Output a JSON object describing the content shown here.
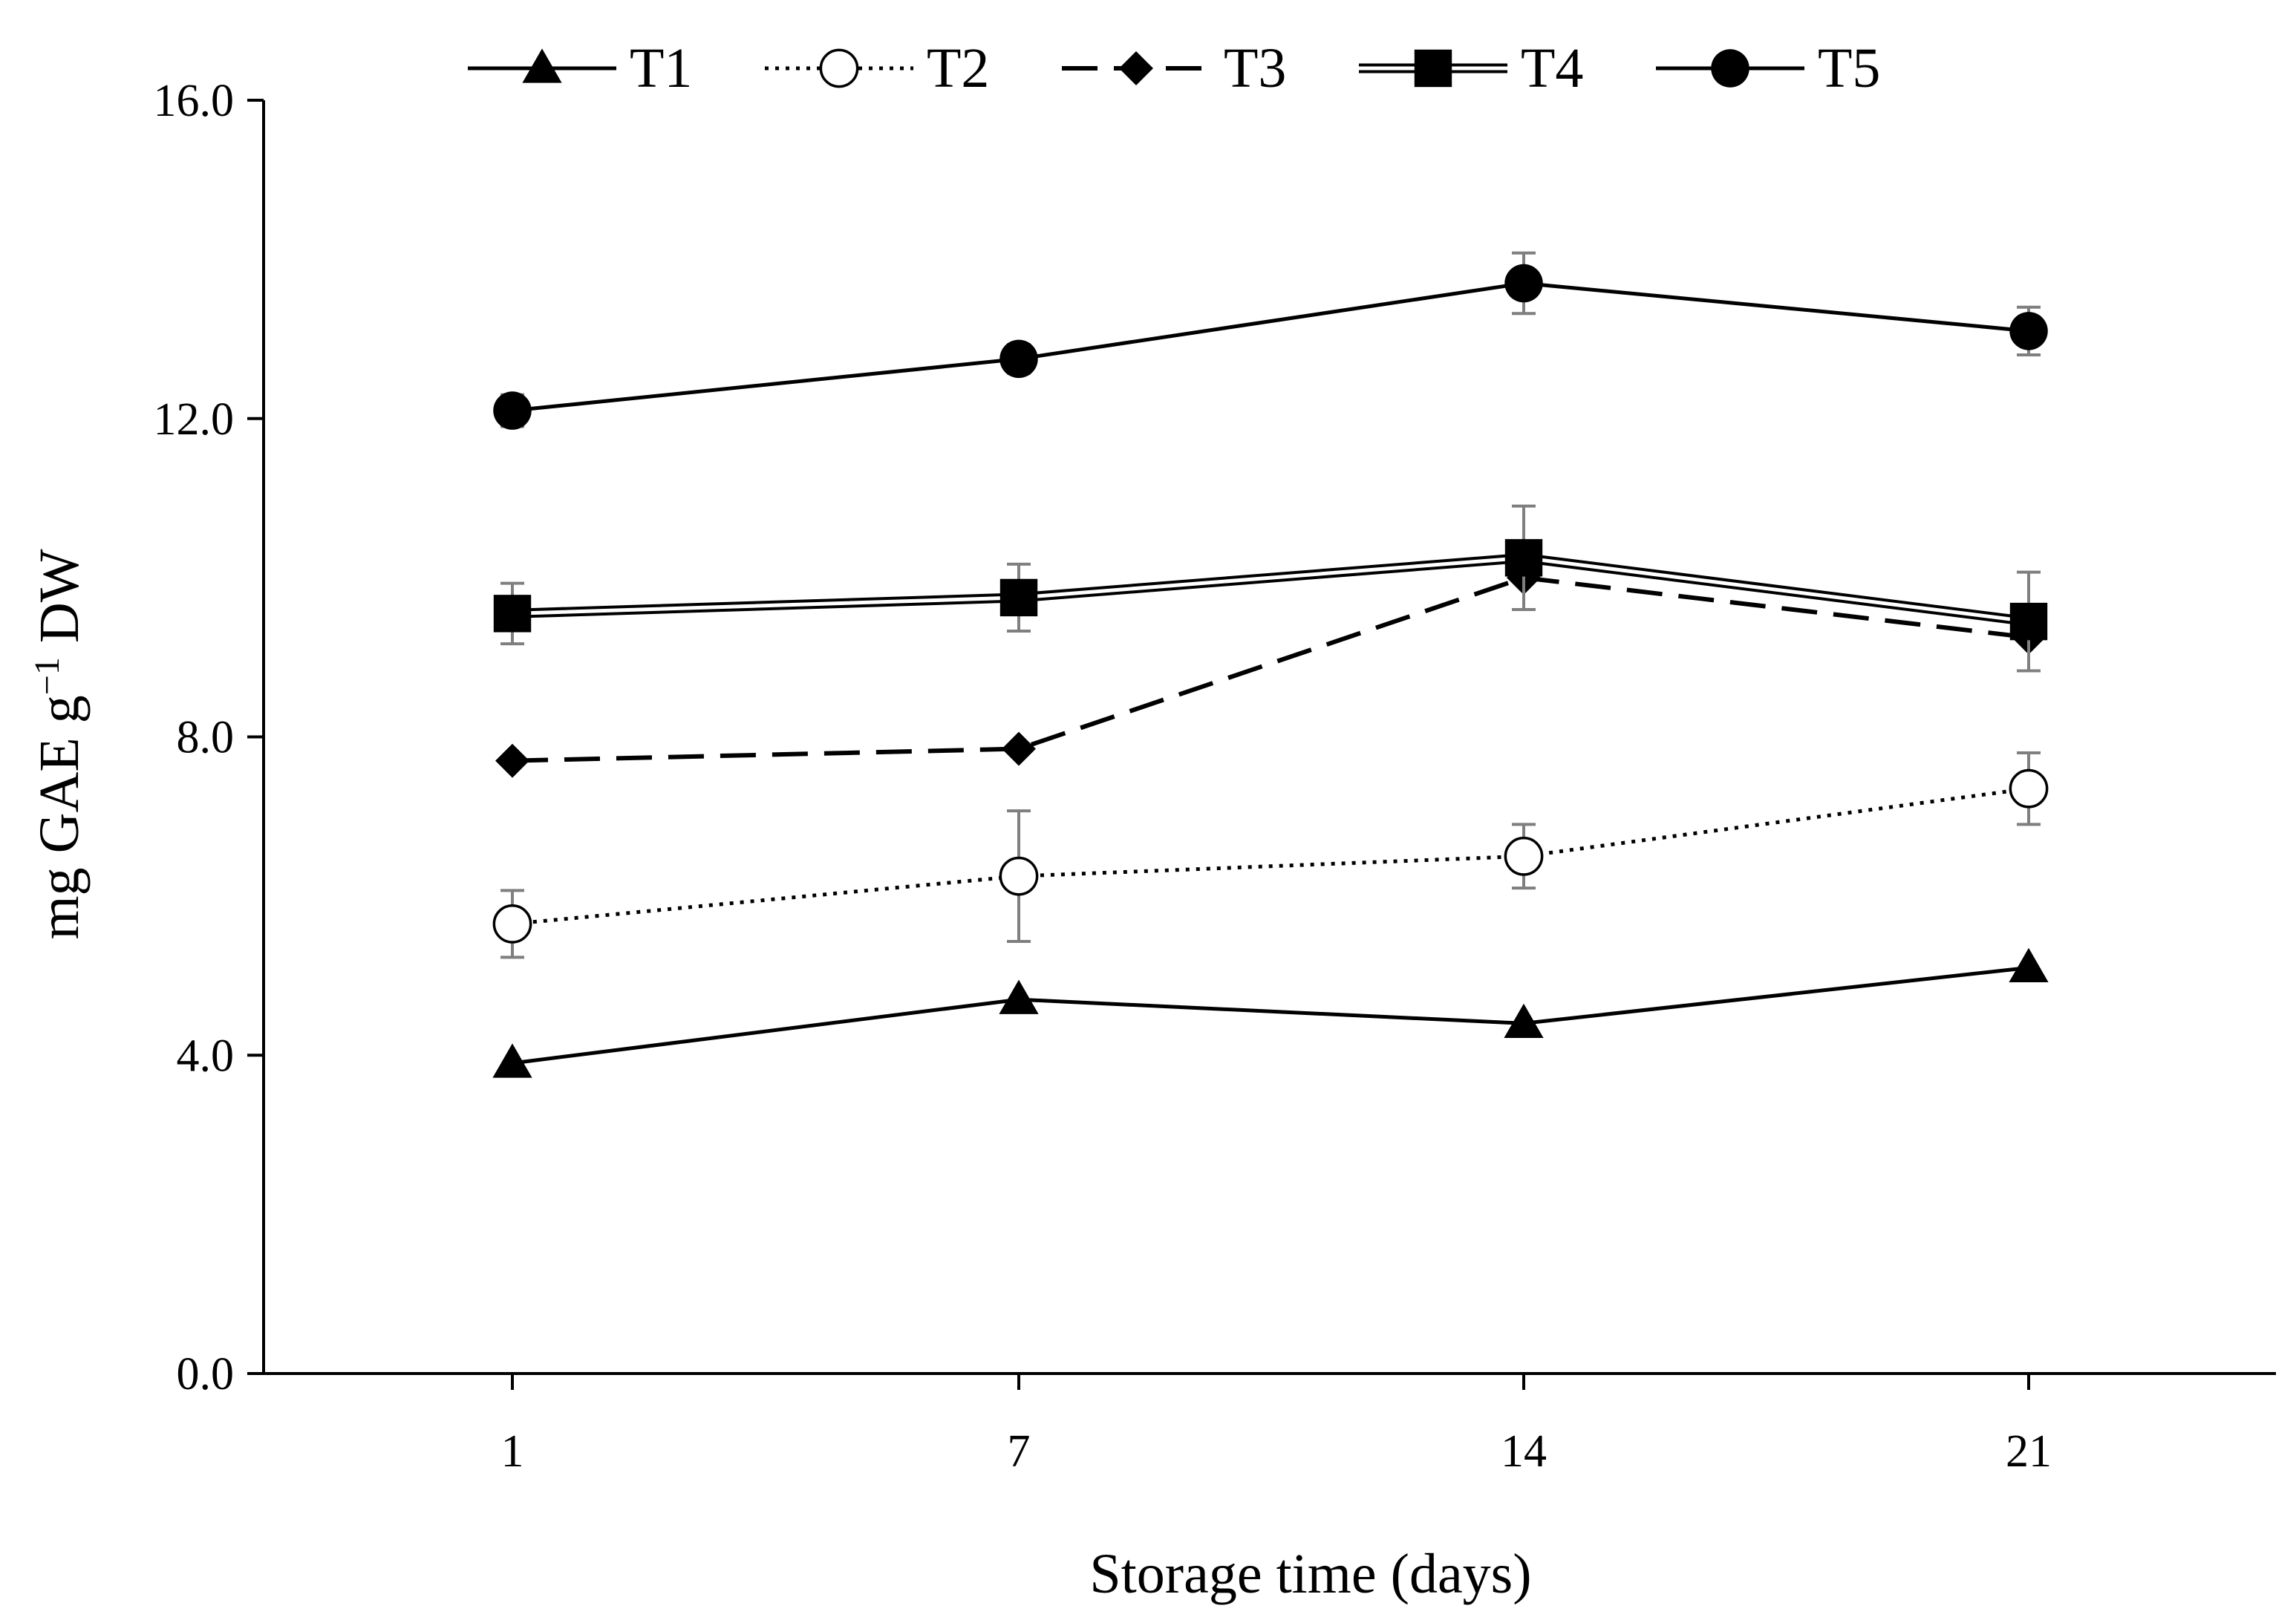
{
  "chart_data": {
    "type": "line",
    "title": "",
    "xlabel": "Storage time (days)",
    "ylabel": "mg GAE g",
    "ylabel_sup": "−1",
    "ylabel_suffix": " DW",
    "categories": [
      "1",
      "7",
      "14",
      "21"
    ],
    "ylim": [
      0,
      16
    ],
    "yticks": [
      0,
      4,
      8,
      12,
      16
    ],
    "ytick_labels": [
      "0.0",
      "4.0",
      "8.0",
      "12.0",
      "16.0"
    ],
    "grid": false,
    "legend_position": "top",
    "series": [
      {
        "name": "T1",
        "marker": "triangle",
        "line": "solid",
        "values": [
          3.9,
          4.7,
          4.4,
          5.1
        ],
        "errors": [
          0,
          0,
          0,
          0
        ]
      },
      {
        "name": "T2",
        "marker": "circle-open",
        "line": "dotted",
        "values": [
          5.65,
          6.25,
          6.5,
          7.35
        ],
        "errors": [
          0.42,
          0.82,
          0.4,
          0.45
        ]
      },
      {
        "name": "T3",
        "marker": "diamond",
        "line": "dashed",
        "values": [
          7.7,
          7.85,
          10.0,
          9.25
        ],
        "errors": [
          0,
          0,
          0,
          0
        ]
      },
      {
        "name": "T4",
        "marker": "square",
        "line": "double",
        "values": [
          9.55,
          9.75,
          10.25,
          9.45
        ],
        "errors": [
          0.38,
          0.42,
          0.65,
          0.62
        ]
      },
      {
        "name": "T5",
        "marker": "circle",
        "line": "solid",
        "values": [
          12.1,
          12.75,
          13.7,
          13.1
        ],
        "errors": [
          0.2,
          0.18,
          0.38,
          0.3
        ]
      }
    ]
  }
}
